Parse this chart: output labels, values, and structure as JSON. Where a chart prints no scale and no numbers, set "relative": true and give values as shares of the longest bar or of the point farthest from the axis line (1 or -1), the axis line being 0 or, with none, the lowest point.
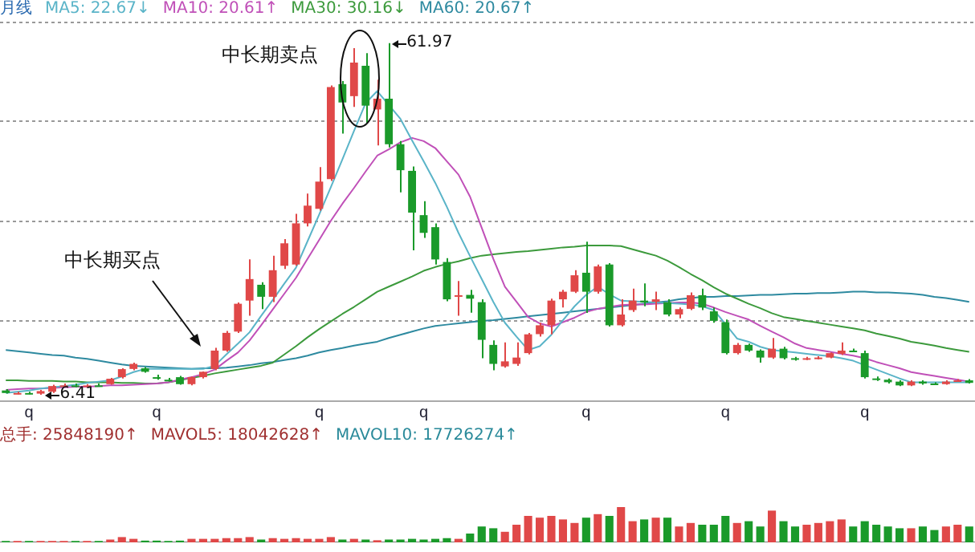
{
  "chart_data": [
    {
      "type": "candlestick",
      "title": "月线",
      "categories": [
        null,
        null,
        "q",
        null,
        null,
        null,
        null,
        null,
        null,
        null,
        null,
        null,
        null,
        "q",
        null,
        null,
        null,
        null,
        null,
        null,
        null,
        null,
        null,
        null,
        null,
        null,
        null,
        "q",
        null,
        null,
        null,
        null,
        null,
        null,
        null,
        null,
        "q",
        null,
        null,
        null,
        null,
        null,
        null,
        null,
        null,
        null,
        null,
        null,
        null,
        null,
        "q",
        null,
        null,
        null,
        null,
        null,
        null,
        null,
        null,
        null,
        null,
        null,
        "q",
        null,
        null,
        null,
        null,
        null,
        null,
        null,
        null,
        null,
        null,
        null,
        "q",
        null,
        null,
        null,
        null,
        null,
        null,
        null,
        null,
        null
      ],
      "ohlc": [
        [
          7.1,
          7.3,
          6.6,
          6.7
        ],
        [
          6.7,
          6.9,
          6.5,
          6.7
        ],
        [
          6.7,
          6.9,
          6.5,
          6.6
        ],
        [
          6.6,
          7.2,
          6.41,
          7.0
        ],
        [
          6.9,
          8.0,
          6.7,
          7.8
        ],
        [
          7.8,
          8.2,
          7.6,
          7.9
        ],
        [
          7.9,
          8.2,
          7.6,
          7.8
        ],
        [
          7.8,
          8.1,
          7.6,
          7.9
        ],
        [
          7.9,
          8.2,
          7.7,
          7.8
        ],
        [
          8.1,
          9.1,
          8.0,
          8.95
        ],
        [
          9.2,
          10.6,
          9.0,
          10.47
        ],
        [
          10.5,
          11.5,
          10.3,
          11.3
        ],
        [
          10.6,
          10.8,
          9.9,
          10.05
        ],
        [
          9.2,
          9.6,
          8.8,
          9.1
        ],
        [
          8.8,
          9.1,
          8.5,
          8.7
        ],
        [
          9.2,
          9.4,
          8.0,
          8.1
        ],
        [
          8.1,
          9.3,
          7.9,
          9.2
        ],
        [
          9.2,
          10.1,
          9.0,
          10.05
        ],
        [
          10.5,
          13.85,
          10.3,
          13.4
        ],
        [
          13.4,
          16.5,
          13.2,
          16.2
        ],
        [
          16.4,
          21.0,
          16.2,
          20.8
        ],
        [
          21.3,
          27.8,
          18.9,
          24.7
        ],
        [
          23.8,
          24.2,
          19.95,
          21.9
        ],
        [
          21.9,
          28.4,
          21.05,
          26.1
        ],
        [
          26.8,
          31.0,
          26.3,
          30.35
        ],
        [
          27.0,
          35.0,
          26.8,
          33.5
        ],
        [
          33.5,
          38.2,
          33.0,
          36.3
        ],
        [
          35.8,
          42.4,
          35.5,
          40.1
        ],
        [
          40.5,
          55.3,
          40.2,
          55.05
        ],
        [
          55.5,
          56.0,
          47.7,
          52.6
        ],
        [
          53.6,
          61.2,
          51.9,
          58.9
        ],
        [
          58.4,
          60.4,
          49.4,
          52.1
        ],
        [
          51.5,
          56.2,
          45.8,
          53.2
        ],
        [
          53.2,
          61.97,
          45.5,
          46.0
        ],
        [
          46.0,
          46.5,
          38.4,
          41.9
        ],
        [
          41.8,
          42.5,
          29.25,
          35.2
        ],
        [
          34.8,
          37.0,
          31.2,
          32.0
        ],
        [
          32.9,
          33.5,
          27.0,
          27.8
        ],
        [
          27.4,
          28.0,
          21.2,
          21.5
        ],
        [
          21.9,
          24.4,
          18.9,
          22.15
        ],
        [
          22.2,
          23.0,
          19.4,
          21.6
        ],
        [
          21.05,
          21.5,
          12.2,
          15.1
        ],
        [
          14.3,
          15.0,
          10.3,
          11.3
        ],
        [
          10.9,
          14.7,
          10.7,
          11.7
        ],
        [
          11.3,
          14.7,
          11.0,
          12.3
        ],
        [
          13.0,
          16.2,
          12.8,
          15.97
        ],
        [
          16.0,
          17.8,
          15.6,
          17.4
        ],
        [
          17.4,
          21.6,
          15.97,
          21.3
        ],
        [
          21.5,
          23.0,
          20.2,
          22.7
        ],
        [
          22.7,
          26.1,
          22.5,
          25.3
        ],
        [
          25.7,
          30.6,
          19.35,
          22.7
        ],
        [
          22.7,
          27.0,
          22.4,
          26.7
        ],
        [
          27.0,
          27.2,
          17.2,
          17.4
        ],
        [
          17.4,
          21.5,
          17.2,
          19.1
        ],
        [
          19.8,
          23.2,
          19.5,
          21.3
        ],
        [
          21.3,
          24.0,
          20.4,
          21.0
        ],
        [
          21.1,
          22.7,
          19.8,
          21.5
        ],
        [
          21.05,
          21.5,
          18.8,
          19.1
        ],
        [
          19.1,
          20.2,
          18.5,
          19.95
        ],
        [
          20.0,
          22.6,
          19.8,
          22.15
        ],
        [
          22.15,
          23.2,
          19.8,
          20.2
        ],
        [
          19.6,
          20.2,
          17.8,
          18.1
        ],
        [
          17.9,
          18.3,
          12.8,
          13.0
        ],
        [
          13.0,
          14.6,
          12.8,
          14.3
        ],
        [
          14.3,
          14.5,
          13.2,
          13.4
        ],
        [
          13.4,
          13.6,
          11.5,
          12.3
        ],
        [
          12.3,
          15.4,
          12.1,
          13.7
        ],
        [
          13.7,
          14.0,
          12.0,
          12.2
        ],
        [
          12.2,
          12.4,
          11.8,
          12.0
        ],
        [
          12.0,
          12.4,
          11.9,
          12.2
        ],
        [
          12.2,
          12.5,
          12.0,
          12.3
        ],
        [
          12.3,
          13.1,
          12.2,
          13.0
        ],
        [
          12.9,
          14.7,
          12.7,
          13.4
        ],
        [
          13.4,
          13.7,
          13.2,
          13.3
        ],
        [
          13.0,
          13.4,
          9.0,
          9.2
        ],
        [
          9.0,
          9.3,
          8.6,
          8.8
        ],
        [
          8.8,
          9.0,
          8.2,
          8.4
        ],
        [
          8.5,
          8.7,
          7.8,
          7.9
        ],
        [
          7.9,
          8.7,
          7.8,
          8.5
        ],
        [
          8.5,
          8.7,
          8.0,
          8.2
        ],
        [
          8.2,
          8.4,
          8.0,
          8.1
        ],
        [
          8.1,
          8.7,
          8.0,
          8.5
        ],
        [
          8.5,
          8.9,
          8.5,
          8.7
        ],
        [
          8.7,
          8.9,
          8.2,
          8.3
        ]
      ],
      "colors": [
        "#1a9a2a",
        "#e04848",
        "#1a9a2a",
        "#e04848",
        "#e04848",
        "#e04848",
        "#1a9a2a",
        "#e04848",
        "#1a9a2a",
        "#e04848",
        "#e04848",
        "#e04848",
        "#1a9a2a",
        "#1a9a2a",
        "#1a9a2a",
        "#1a9a2a",
        "#e04848",
        "#e04848",
        "#e04848",
        "#e04848",
        "#e04848",
        "#e04848",
        "#1a9a2a",
        "#e04848",
        "#e04848",
        "#e04848",
        "#e04848",
        "#e04848",
        "#e04848",
        "#1a9a2a",
        "#e04848",
        "#1a9a2a",
        "#e04848",
        "#1a9a2a",
        "#1a9a2a",
        "#1a9a2a",
        "#1a9a2a",
        "#1a9a2a",
        "#1a9a2a",
        "#e04848",
        "#1a9a2a",
        "#1a9a2a",
        "#1a9a2a",
        "#e04848",
        "#e04848",
        "#e04848",
        "#e04848",
        "#e04848",
        "#e04848",
        "#e04848",
        "#1a9a2a",
        "#e04848",
        "#1a9a2a",
        "#e04848",
        "#e04848",
        "#1a9a2a",
        "#e04848",
        "#1a9a2a",
        "#e04848",
        "#e04848",
        "#1a9a2a",
        "#1a9a2a",
        "#1a9a2a",
        "#e04848",
        "#1a9a2a",
        "#1a9a2a",
        "#e04848",
        "#1a9a2a",
        "#1a9a2a",
        "#e04848",
        "#e04848",
        "#e04848",
        "#e04848",
        "#1a9a2a",
        "#1a9a2a",
        "#1a9a2a",
        "#1a9a2a",
        "#1a9a2a",
        "#e04848",
        "#1a9a2a",
        "#1a9a2a",
        "#e04848",
        "#e04848",
        "#1a9a2a"
      ],
      "series": [
        {
          "type": "line",
          "name": "MA5: 22.67↓",
          "color": "#5ab4c8",
          "values": [
            6.7,
            6.9,
            7.1,
            7.4,
            7.6,
            7.8,
            8.0,
            8.3,
            8.5,
            8.7,
            9.3,
            10.0,
            10.5,
            10.5,
            10.5,
            10.5,
            10.5,
            10.5,
            11.0,
            12.8,
            14.5,
            16.3,
            18.9,
            21.4,
            24.0,
            26.5,
            30.7,
            34.9,
            39.2,
            43.6,
            48.1,
            52.5,
            54.4,
            52.2,
            50.0,
            46.6,
            43.3,
            39.9,
            36.1,
            32.0,
            28.3,
            24.7,
            21.1,
            17.8,
            15.6,
            13.5,
            14.1,
            15.9,
            18.2,
            20.4,
            22.2,
            23.5,
            22.3,
            21.3,
            21.2,
            21.1,
            21.0,
            20.9,
            20.8,
            20.7,
            20.4,
            19.8,
            17.6,
            15.3,
            14.8,
            14.0,
            13.5,
            13.3,
            13.1,
            12.9,
            12.7,
            12.5,
            12.2,
            11.8,
            11.1,
            10.4,
            9.7,
            9.0,
            8.4,
            8.4,
            8.4,
            8.4,
            8.4,
            8.4
          ]
        },
        {
          "type": "line",
          "name": "MA10: 20.61↑",
          "color": "#c050b8",
          "values": [
            7.2,
            7.3,
            7.4,
            7.4,
            7.5,
            7.6,
            7.7,
            7.7,
            7.8,
            7.9,
            7.9,
            8.0,
            8.1,
            8.2,
            8.4,
            8.8,
            9.2,
            9.7,
            10.4,
            11.8,
            13.1,
            15.0,
            17.4,
            19.9,
            22.4,
            24.9,
            27.9,
            30.9,
            33.9,
            36.6,
            39.1,
            41.7,
            44.2,
            45.2,
            46.3,
            47.0,
            46.5,
            45.4,
            43.3,
            41.2,
            37.7,
            32.8,
            27.9,
            23.5,
            21.1,
            18.7,
            17.7,
            17.2,
            17.9,
            18.6,
            19.5,
            20.0,
            20.3,
            20.6,
            20.7,
            20.7,
            20.8,
            20.9,
            21.0,
            21.0,
            20.8,
            20.2,
            19.5,
            18.9,
            18.3,
            17.3,
            16.4,
            15.5,
            14.5,
            13.8,
            13.5,
            13.2,
            12.9,
            12.6,
            12.2,
            11.6,
            11.1,
            10.6,
            10.0,
            9.7,
            9.4,
            9.1,
            8.8,
            8.5
          ]
        },
        {
          "type": "line",
          "name": "MA30: 30.16↓",
          "color": "#3c9a3c",
          "values": [
            8.7,
            8.7,
            8.6,
            8.6,
            8.6,
            8.5,
            8.5,
            8.4,
            8.4,
            8.4,
            8.3,
            8.3,
            8.2,
            8.2,
            8.4,
            8.7,
            9.1,
            9.4,
            9.8,
            10.1,
            10.4,
            10.7,
            11.0,
            11.5,
            12.8,
            14.1,
            15.5,
            16.8,
            18.0,
            19.2,
            20.3,
            21.5,
            22.7,
            23.5,
            24.3,
            25.1,
            26.0,
            26.6,
            27.1,
            27.5,
            28.0,
            28.4,
            28.6,
            28.8,
            29.0,
            29.1,
            29.3,
            29.5,
            29.7,
            29.8,
            30.0,
            30.0,
            30.0,
            29.9,
            29.4,
            28.9,
            28.4,
            27.6,
            26.6,
            25.5,
            24.5,
            23.4,
            22.4,
            21.6,
            20.8,
            20.1,
            19.3,
            18.7,
            18.4,
            18.1,
            17.8,
            17.5,
            17.2,
            16.9,
            16.6,
            16.1,
            15.7,
            15.3,
            14.8,
            14.5,
            14.2,
            13.8,
            13.5,
            13.2
          ]
        },
        {
          "type": "line",
          "name": "MA60: 20.67↑",
          "color": "#2e8aa0",
          "values": [
            13.5,
            13.3,
            13.1,
            12.9,
            12.7,
            12.6,
            12.3,
            12.1,
            11.8,
            11.5,
            11.2,
            11.0,
            10.9,
            10.8,
            10.7,
            10.6,
            10.5,
            10.6,
            10.6,
            10.7,
            10.9,
            11.1,
            11.4,
            11.6,
            11.9,
            12.2,
            12.6,
            13.1,
            13.5,
            13.8,
            14.2,
            14.5,
            14.8,
            15.4,
            15.9,
            16.4,
            16.9,
            17.3,
            17.5,
            17.7,
            17.9,
            18.1,
            18.2,
            18.4,
            18.6,
            18.8,
            19.0,
            19.2,
            19.4,
            19.6,
            19.8,
            20.0,
            20.2,
            20.4,
            20.6,
            20.8,
            21.0,
            21.2,
            21.5,
            21.7,
            21.9,
            21.9,
            22.0,
            22.0,
            22.1,
            22.2,
            22.2,
            22.3,
            22.4,
            22.4,
            22.5,
            22.5,
            22.6,
            22.7,
            22.7,
            22.6,
            22.6,
            22.5,
            22.4,
            22.2,
            21.9,
            21.7,
            21.4,
            21.1
          ]
        }
      ],
      "yticks": [
        {
          "value": 18.1,
          "label": null
        },
        {
          "value": 33.8,
          "label": null
        },
        {
          "value": 49.6,
          "label": null
        },
        {
          "value": 65.3,
          "label": null
        }
      ],
      "grid": "y",
      "legend": "top left",
      "tick_labels": "x",
      "annotations": [
        "中长期卖点",
        "中长期买点",
        "61.97",
        "6.41"
      ]
    },
    {
      "type": "bar",
      "relative": true,
      "title": "总手: 25848190↑",
      "categories": [
        null,
        null,
        null,
        null,
        null,
        null,
        null,
        null,
        null,
        null,
        null,
        null,
        null,
        null,
        null,
        null,
        null,
        null,
        null,
        null,
        null,
        null,
        null,
        null,
        null,
        null,
        null,
        null,
        null,
        null,
        null,
        null,
        null,
        null,
        null,
        null,
        null,
        null,
        null,
        null,
        null,
        null,
        null,
        null,
        null,
        null,
        null,
        null,
        null,
        null,
        null,
        null,
        null,
        null,
        null,
        null,
        null,
        null,
        null,
        null,
        null,
        null,
        null,
        null,
        null,
        null,
        null,
        null,
        null,
        null,
        null,
        null,
        null,
        null,
        null,
        null,
        null,
        null,
        null,
        null,
        null,
        null,
        null,
        null
      ],
      "values": [
        0.04,
        0.04,
        0.04,
        0.04,
        0.04,
        0.04,
        0.04,
        0.04,
        0.04,
        0.08,
        0.15,
        0.1,
        0.05,
        0.05,
        0.04,
        0.05,
        0.1,
        0.1,
        0.1,
        0.12,
        0.12,
        0.15,
        0.08,
        0.12,
        0.1,
        0.12,
        0.1,
        0.1,
        0.15,
        0.08,
        0.1,
        0.08,
        0.06,
        0.08,
        0.08,
        0.1,
        0.08,
        0.1,
        0.12,
        0.1,
        0.25,
        0.45,
        0.4,
        0.3,
        0.5,
        0.75,
        0.7,
        0.75,
        0.65,
        0.55,
        0.7,
        0.8,
        0.75,
        1,
        0.6,
        0.65,
        0.7,
        0.7,
        0.45,
        0.55,
        0.5,
        0.5,
        0.75,
        0.55,
        0.6,
        0.45,
        0.9,
        0.6,
        0.45,
        0.5,
        0.55,
        0.6,
        0.65,
        0.45,
        0.6,
        0.5,
        0.45,
        0.4,
        0.4,
        0.45,
        0.35,
        0.45,
        0.5,
        0.45
      ],
      "colors": [
        "#1a9a2a",
        "#e04848",
        "#1a9a2a",
        "#e04848",
        "#e04848",
        "#e04848",
        "#1a9a2a",
        "#e04848",
        "#1a9a2a",
        "#e04848",
        "#e04848",
        "#e04848",
        "#1a9a2a",
        "#1a9a2a",
        "#1a9a2a",
        "#1a9a2a",
        "#e04848",
        "#e04848",
        "#e04848",
        "#e04848",
        "#e04848",
        "#e04848",
        "#1a9a2a",
        "#e04848",
        "#e04848",
        "#e04848",
        "#e04848",
        "#e04848",
        "#e04848",
        "#1a9a2a",
        "#e04848",
        "#1a9a2a",
        "#e04848",
        "#1a9a2a",
        "#1a9a2a",
        "#1a9a2a",
        "#1a9a2a",
        "#1a9a2a",
        "#1a9a2a",
        "#e04848",
        "#1a9a2a",
        "#1a9a2a",
        "#1a9a2a",
        "#e04848",
        "#e04848",
        "#e04848",
        "#e04848",
        "#e04848",
        "#e04848",
        "#e04848",
        "#1a9a2a",
        "#e04848",
        "#1a9a2a",
        "#e04848",
        "#e04848",
        "#1a9a2a",
        "#e04848",
        "#1a9a2a",
        "#e04848",
        "#e04848",
        "#1a9a2a",
        "#1a9a2a",
        "#1a9a2a",
        "#e04848",
        "#1a9a2a",
        "#1a9a2a",
        "#e04848",
        "#1a9a2a",
        "#1a9a2a",
        "#e04848",
        "#e04848",
        "#e04848",
        "#e04848",
        "#1a9a2a",
        "#1a9a2a",
        "#1a9a2a",
        "#1a9a2a",
        "#1a9a2a",
        "#e04848",
        "#1a9a2a",
        "#1a9a2a",
        "#e04848",
        "#e04848",
        "#1a9a2a"
      ],
      "annotations": [
        "MAVOL5: 18042628↑",
        "MAVOL10: 17726274↑"
      ]
    }
  ]
}
